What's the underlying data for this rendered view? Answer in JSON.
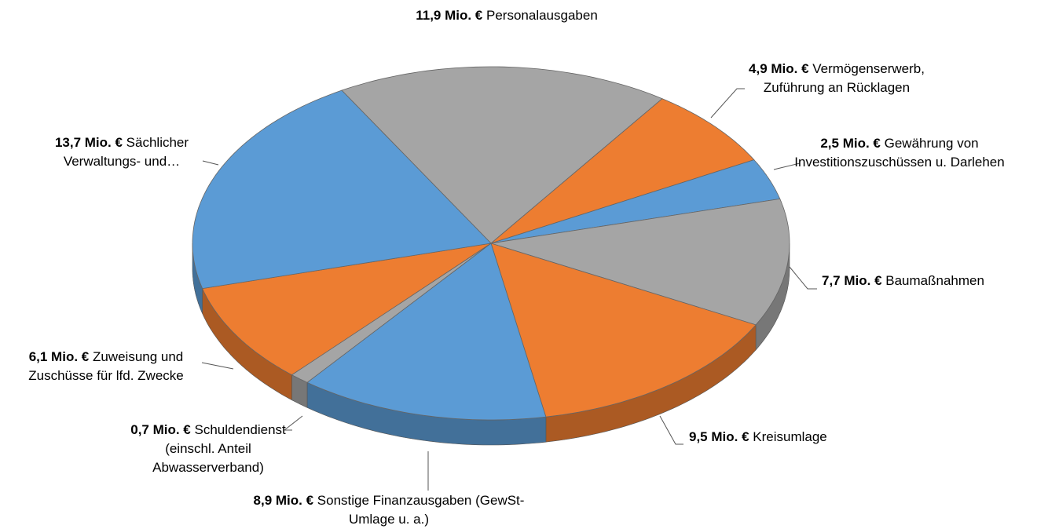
{
  "chart_data": {
    "type": "pie3d",
    "categories": [
      "Personalausgaben",
      "Vermögenserwerb, Zuführung an Rücklagen",
      "Gewährung von Investitionszuschüssen u. Darlehen",
      "Baumaßnahmen",
      "Kreisumlage",
      "Sonstige Finanzausgaben (GewSt-Umlage u. a.)",
      "Schuldendienst (einschl. Anteil Abwasserverband)",
      "Zuweisung und Zuschüsse für lfd. Zwecke",
      "Sächlicher Verwaltungs- und…"
    ],
    "values": [
      11.9,
      4.9,
      2.5,
      7.7,
      9.5,
      8.9,
      0.7,
      6.1,
      13.7
    ],
    "value_labels": [
      "11,9 Mio. €",
      "4,9 Mio. €",
      "2,5 Mio. €",
      "7,7 Mio. €",
      "9,5 Mio. €",
      "8,9 Mio. €",
      "0,7 Mio. €",
      "6,1 Mio. €",
      "13,7 Mio. €"
    ],
    "colors": [
      "#a5a5a5",
      "#ed7d31",
      "#5b9bd5",
      "#a5a5a5",
      "#ed7d31",
      "#5b9bd5",
      "#a5a5a5",
      "#ed7d31",
      "#5b9bd5"
    ]
  }
}
